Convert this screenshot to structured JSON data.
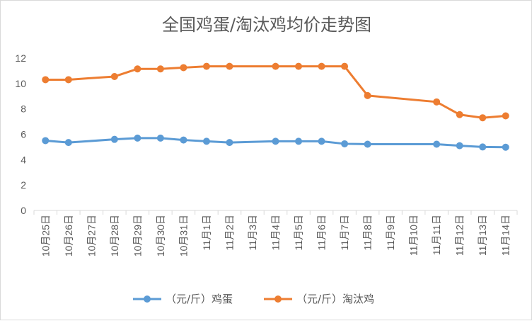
{
  "chart_data": {
    "type": "line",
    "title": "全国鸡蛋/淘汰鸡均价走势图",
    "xlabel": "",
    "ylabel": "",
    "categories": [
      "10月25日",
      "10月26日",
      "10月27日",
      "10月28日",
      "10月29日",
      "10月30日",
      "10月31日",
      "11月1日",
      "11月2日",
      "11月3日",
      "11月4日",
      "11月5日",
      "11月6日",
      "11月7日",
      "11月8日",
      "11月9日",
      "11月10日",
      "11月11日",
      "11月12日",
      "11月13日",
      "11月14日"
    ],
    "ylim": [
      0,
      12
    ],
    "yticks": [
      0,
      2,
      4,
      6,
      8,
      10,
      12
    ],
    "grid": false,
    "legend_position": "bottom",
    "series": [
      {
        "name": "（元/斤）鸡蛋",
        "color": "#5B9BD5",
        "values": [
          5.5,
          5.35,
          null,
          5.6,
          5.7,
          5.7,
          5.55,
          5.45,
          5.35,
          null,
          5.45,
          5.45,
          5.45,
          5.25,
          5.22,
          null,
          null,
          5.22,
          5.1,
          5.0,
          4.98
        ]
      },
      {
        "name": "（元/斤）淘汰鸡",
        "color": "#ED7D31",
        "values": [
          10.3,
          10.3,
          null,
          10.55,
          11.15,
          11.15,
          11.25,
          11.35,
          11.35,
          null,
          11.35,
          11.35,
          11.35,
          11.35,
          9.05,
          null,
          null,
          8.55,
          7.55,
          7.3,
          7.45
        ]
      }
    ]
  }
}
